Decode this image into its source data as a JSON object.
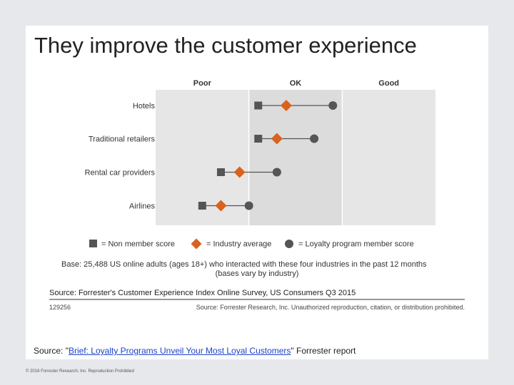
{
  "slide": {
    "title": "They improve the customer experience",
    "source_prefix": "Source: \"",
    "source_link": "Brief: Loyalty Programs Unveil Your Most Loyal Customers",
    "source_suffix": "\" Forrester report",
    "footer": "© 2016 Forrester Research, Inc. Reproduction Prohibited"
  },
  "colors": {
    "non_member": "#555555",
    "industry": "#d9621c",
    "loyalty": "#555555",
    "band_light": "#e6e6e6",
    "band_mid": "#dcdcdc"
  },
  "chart_data": {
    "type": "dot-plot",
    "column_headers": [
      "Poor",
      "OK",
      "Good"
    ],
    "categories": [
      "Hotels",
      "Traditional retailers",
      "Rental car providers",
      "Airlines"
    ],
    "xlim": [
      0,
      3
    ],
    "series": [
      {
        "name": "= Non member score",
        "marker": "square",
        "values": [
          1.1,
          1.1,
          0.7,
          0.5
        ]
      },
      {
        "name": "= Industry average",
        "marker": "diamond",
        "values": [
          1.4,
          1.3,
          0.9,
          0.7
        ]
      },
      {
        "name": "= Loyalty program member score",
        "marker": "circle",
        "values": [
          1.9,
          1.7,
          1.3,
          1.0
        ]
      }
    ],
    "base_line1": "Base: 25,488 US online adults (ages 18+) who interacted with these four industries in the past 12 months",
    "base_line2": "(bases vary by industry)",
    "survey_source": "Source: Forrester's Customer Experience Index Online Survey, US Consumers Q3 2015",
    "report_id": "129256",
    "copyright_note": "Source: Forrester Research, Inc. Unauthorized reproduction, citation, or distribution prohibited."
  }
}
